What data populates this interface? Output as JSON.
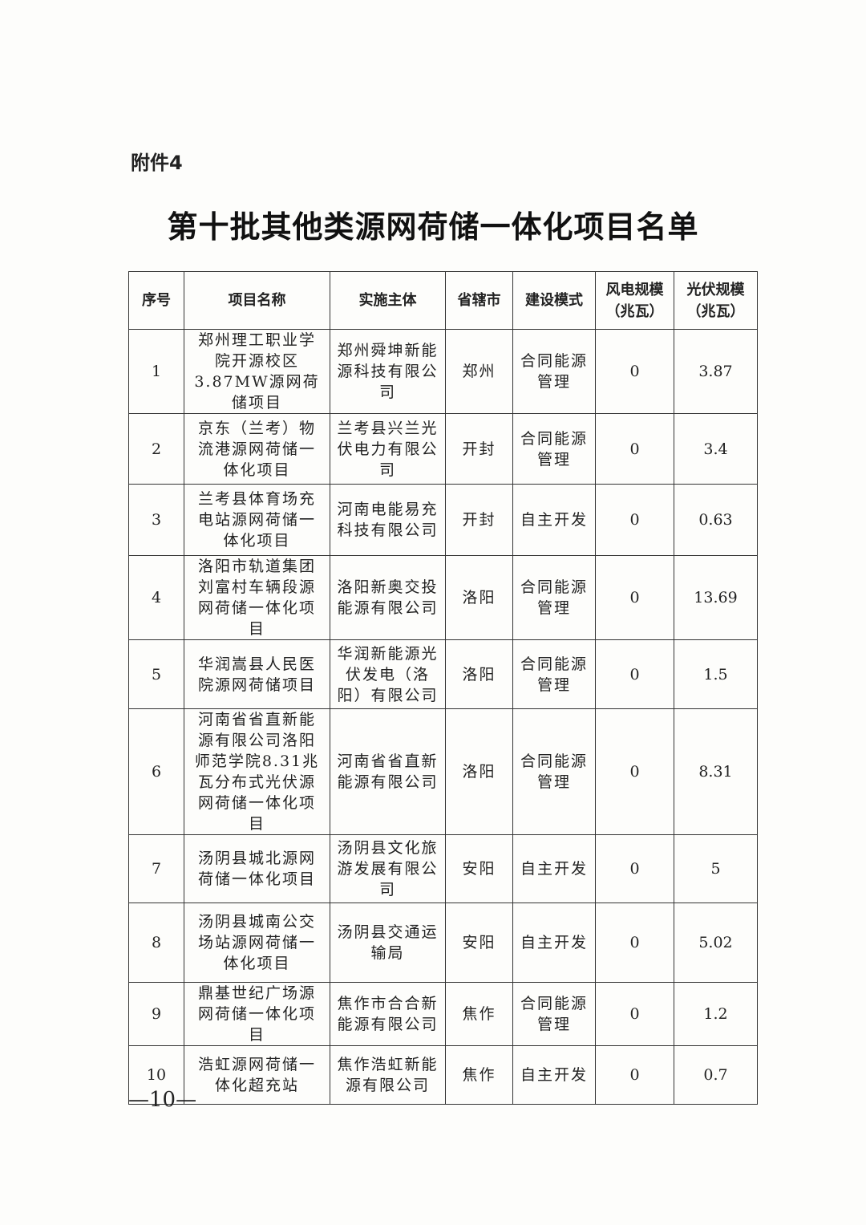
{
  "attachment_label": "附件4",
  "title": "第十批其他类源网荷储一体化项目名单",
  "table": {
    "headers": [
      "序号",
      "项目名称",
      "实施主体",
      "省辖市",
      "建设模式",
      "风电规模（兆瓦）",
      "光伏规模（兆瓦）"
    ],
    "rows": [
      {
        "no": "1",
        "name": "郑州理工职业学院开源校区3.87MW源网荷储项目",
        "entity": "郑州舜坤新能源科技有限公司",
        "city": "郑州",
        "mode": "合同能源管理",
        "wind": "0",
        "pv": "3.87"
      },
      {
        "no": "2",
        "name": "京东（兰考）物流港源网荷储一体化项目",
        "entity": "兰考县兴兰光伏电力有限公司",
        "city": "开封",
        "mode": "合同能源管理",
        "wind": "0",
        "pv": "3.4"
      },
      {
        "no": "3",
        "name": "兰考县体育场充电站源网荷储一体化项目",
        "entity": "河南电能易充科技有限公司",
        "city": "开封",
        "mode": "自主开发",
        "wind": "0",
        "pv": "0.63"
      },
      {
        "no": "4",
        "name": "洛阳市轨道集团刘富村车辆段源网荷储一体化项目",
        "entity": "洛阳新奥交投能源有限公司",
        "city": "洛阳",
        "mode": "合同能源管理",
        "wind": "0",
        "pv": "13.69"
      },
      {
        "no": "5",
        "name": "华润嵩县人民医院源网荷储项目",
        "entity": "华润新能源光伏发电（洛阳）有限公司",
        "city": "洛阳",
        "mode": "合同能源管理",
        "wind": "0",
        "pv": "1.5"
      },
      {
        "no": "6",
        "name": "河南省省直新能源有限公司洛阳师范学院8.31兆瓦分布式光伏源网荷储一体化项目",
        "entity": "河南省省直新能源有限公司",
        "city": "洛阳",
        "mode": "合同能源管理",
        "wind": "0",
        "pv": "8.31"
      },
      {
        "no": "7",
        "name": "汤阴县城北源网荷储一体化项目",
        "entity": "汤阴县文化旅游发展有限公司",
        "city": "安阳",
        "mode": "自主开发",
        "wind": "0",
        "pv": "5"
      },
      {
        "no": "8",
        "name": "汤阴县城南公交场站源网荷储一体化项目",
        "entity": "汤阴县交通运输局",
        "city": "安阳",
        "mode": "自主开发",
        "wind": "0",
        "pv": "5.02"
      },
      {
        "no": "9",
        "name": "鼎基世纪广场源网荷储一体化项目",
        "entity": "焦作市合合新能源有限公司",
        "city": "焦作",
        "mode": "合同能源管理",
        "wind": "0",
        "pv": "1.2"
      },
      {
        "no": "10",
        "name": "浩虹源网荷储一体化超充站",
        "entity": "焦作浩虹新能源有限公司",
        "city": "焦作",
        "mode": "自主开发",
        "wind": "0",
        "pv": "0.7"
      }
    ]
  },
  "page_number": "—10—"
}
